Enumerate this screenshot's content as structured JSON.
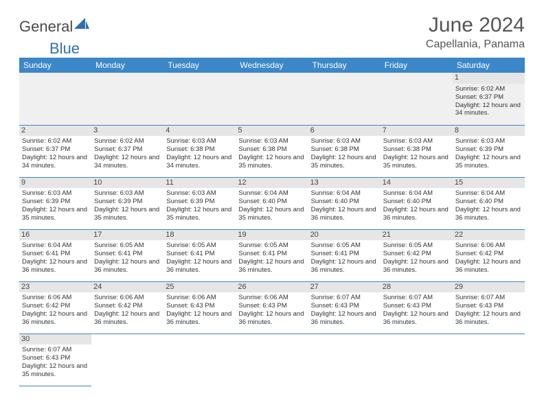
{
  "brand": {
    "part1": "General",
    "part2": "Blue",
    "logo_color": "#2f6fb3"
  },
  "title": "June 2024",
  "location": "Capellania, Panama",
  "colors": {
    "header_bg": "#3b87c8",
    "header_text": "#ffffff",
    "daynum_bg": "#e6e6e6",
    "cell_border": "#3b87c8",
    "empty_bg": "#f0f0f0",
    "body_text": "#333333"
  },
  "day_headers": [
    "Sunday",
    "Monday",
    "Tuesday",
    "Wednesday",
    "Thursday",
    "Friday",
    "Saturday"
  ],
  "weeks": [
    [
      null,
      null,
      null,
      null,
      null,
      null,
      {
        "n": "1",
        "sr": "Sunrise: 6:02 AM",
        "ss": "Sunset: 6:37 PM",
        "dl": "Daylight: 12 hours and 34 minutes."
      }
    ],
    [
      {
        "n": "2",
        "sr": "Sunrise: 6:02 AM",
        "ss": "Sunset: 6:37 PM",
        "dl": "Daylight: 12 hours and 34 minutes."
      },
      {
        "n": "3",
        "sr": "Sunrise: 6:02 AM",
        "ss": "Sunset: 6:37 PM",
        "dl": "Daylight: 12 hours and 34 minutes."
      },
      {
        "n": "4",
        "sr": "Sunrise: 6:03 AM",
        "ss": "Sunset: 6:38 PM",
        "dl": "Daylight: 12 hours and 34 minutes."
      },
      {
        "n": "5",
        "sr": "Sunrise: 6:03 AM",
        "ss": "Sunset: 6:38 PM",
        "dl": "Daylight: 12 hours and 35 minutes."
      },
      {
        "n": "6",
        "sr": "Sunrise: 6:03 AM",
        "ss": "Sunset: 6:38 PM",
        "dl": "Daylight: 12 hours and 35 minutes."
      },
      {
        "n": "7",
        "sr": "Sunrise: 6:03 AM",
        "ss": "Sunset: 6:38 PM",
        "dl": "Daylight: 12 hours and 35 minutes."
      },
      {
        "n": "8",
        "sr": "Sunrise: 6:03 AM",
        "ss": "Sunset: 6:39 PM",
        "dl": "Daylight: 12 hours and 35 minutes."
      }
    ],
    [
      {
        "n": "9",
        "sr": "Sunrise: 6:03 AM",
        "ss": "Sunset: 6:39 PM",
        "dl": "Daylight: 12 hours and 35 minutes."
      },
      {
        "n": "10",
        "sr": "Sunrise: 6:03 AM",
        "ss": "Sunset: 6:39 PM",
        "dl": "Daylight: 12 hours and 35 minutes."
      },
      {
        "n": "11",
        "sr": "Sunrise: 6:03 AM",
        "ss": "Sunset: 6:39 PM",
        "dl": "Daylight: 12 hours and 35 minutes."
      },
      {
        "n": "12",
        "sr": "Sunrise: 6:04 AM",
        "ss": "Sunset: 6:40 PM",
        "dl": "Daylight: 12 hours and 35 minutes."
      },
      {
        "n": "13",
        "sr": "Sunrise: 6:04 AM",
        "ss": "Sunset: 6:40 PM",
        "dl": "Daylight: 12 hours and 36 minutes."
      },
      {
        "n": "14",
        "sr": "Sunrise: 6:04 AM",
        "ss": "Sunset: 6:40 PM",
        "dl": "Daylight: 12 hours and 36 minutes."
      },
      {
        "n": "15",
        "sr": "Sunrise: 6:04 AM",
        "ss": "Sunset: 6:40 PM",
        "dl": "Daylight: 12 hours and 36 minutes."
      }
    ],
    [
      {
        "n": "16",
        "sr": "Sunrise: 6:04 AM",
        "ss": "Sunset: 6:41 PM",
        "dl": "Daylight: 12 hours and 36 minutes."
      },
      {
        "n": "17",
        "sr": "Sunrise: 6:05 AM",
        "ss": "Sunset: 6:41 PM",
        "dl": "Daylight: 12 hours and 36 minutes."
      },
      {
        "n": "18",
        "sr": "Sunrise: 6:05 AM",
        "ss": "Sunset: 6:41 PM",
        "dl": "Daylight: 12 hours and 36 minutes."
      },
      {
        "n": "19",
        "sr": "Sunrise: 6:05 AM",
        "ss": "Sunset: 6:41 PM",
        "dl": "Daylight: 12 hours and 36 minutes."
      },
      {
        "n": "20",
        "sr": "Sunrise: 6:05 AM",
        "ss": "Sunset: 6:41 PM",
        "dl": "Daylight: 12 hours and 36 minutes."
      },
      {
        "n": "21",
        "sr": "Sunrise: 6:05 AM",
        "ss": "Sunset: 6:42 PM",
        "dl": "Daylight: 12 hours and 36 minutes."
      },
      {
        "n": "22",
        "sr": "Sunrise: 6:06 AM",
        "ss": "Sunset: 6:42 PM",
        "dl": "Daylight: 12 hours and 36 minutes."
      }
    ],
    [
      {
        "n": "23",
        "sr": "Sunrise: 6:06 AM",
        "ss": "Sunset: 6:42 PM",
        "dl": "Daylight: 12 hours and 36 minutes."
      },
      {
        "n": "24",
        "sr": "Sunrise: 6:06 AM",
        "ss": "Sunset: 6:42 PM",
        "dl": "Daylight: 12 hours and 36 minutes."
      },
      {
        "n": "25",
        "sr": "Sunrise: 6:06 AM",
        "ss": "Sunset: 6:43 PM",
        "dl": "Daylight: 12 hours and 36 minutes."
      },
      {
        "n": "26",
        "sr": "Sunrise: 6:06 AM",
        "ss": "Sunset: 6:43 PM",
        "dl": "Daylight: 12 hours and 36 minutes."
      },
      {
        "n": "27",
        "sr": "Sunrise: 6:07 AM",
        "ss": "Sunset: 6:43 PM",
        "dl": "Daylight: 12 hours and 36 minutes."
      },
      {
        "n": "28",
        "sr": "Sunrise: 6:07 AM",
        "ss": "Sunset: 6:43 PM",
        "dl": "Daylight: 12 hours and 36 minutes."
      },
      {
        "n": "29",
        "sr": "Sunrise: 6:07 AM",
        "ss": "Sunset: 6:43 PM",
        "dl": "Daylight: 12 hours and 36 minutes."
      }
    ],
    [
      {
        "n": "30",
        "sr": "Sunrise: 6:07 AM",
        "ss": "Sunset: 6:43 PM",
        "dl": "Daylight: 12 hours and 35 minutes."
      },
      null,
      null,
      null,
      null,
      null,
      null
    ]
  ]
}
